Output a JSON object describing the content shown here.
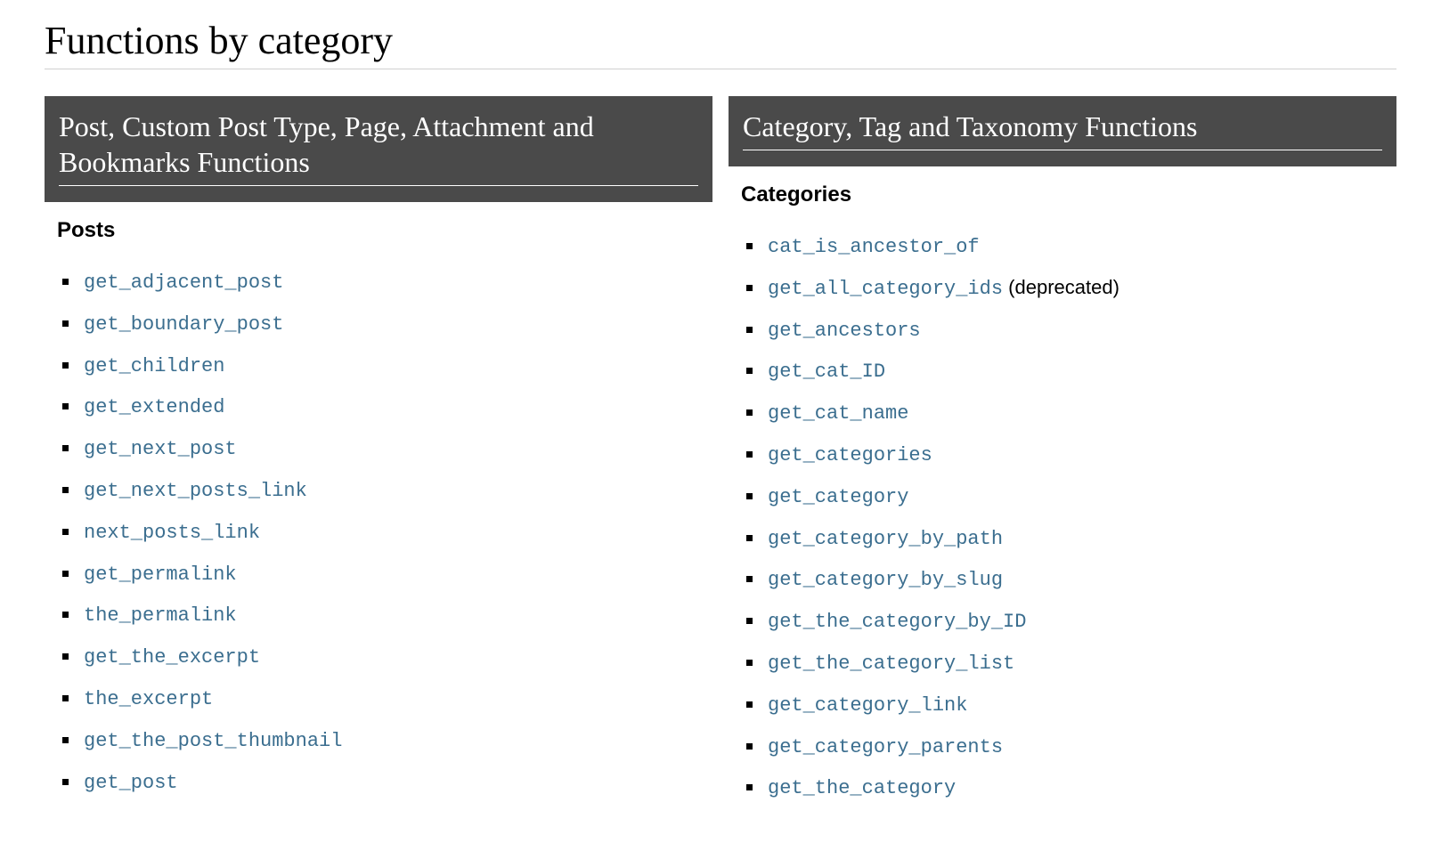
{
  "page_title": "Functions by category",
  "link_color": "#3b6e8f",
  "header_bg": "#4a4a4a",
  "left": {
    "header": "Post, Custom Post Type, Page, Attachment and Bookmarks Functions",
    "subsection": "Posts",
    "items": [
      {
        "name": "get_adjacent_post",
        "suffix": ""
      },
      {
        "name": "get_boundary_post",
        "suffix": ""
      },
      {
        "name": "get_children",
        "suffix": ""
      },
      {
        "name": "get_extended",
        "suffix": ""
      },
      {
        "name": "get_next_post",
        "suffix": ""
      },
      {
        "name": "get_next_posts_link",
        "suffix": ""
      },
      {
        "name": "next_posts_link",
        "suffix": ""
      },
      {
        "name": "get_permalink",
        "suffix": ""
      },
      {
        "name": "the_permalink",
        "suffix": ""
      },
      {
        "name": "get_the_excerpt",
        "suffix": ""
      },
      {
        "name": "the_excerpt",
        "suffix": ""
      },
      {
        "name": "get_the_post_thumbnail",
        "suffix": ""
      },
      {
        "name": "get_post",
        "suffix": ""
      }
    ]
  },
  "right": {
    "header": "Category, Tag and Taxonomy Functions",
    "subsection": "Categories",
    "items": [
      {
        "name": "cat_is_ancestor_of",
        "suffix": ""
      },
      {
        "name": "get_all_category_ids",
        "suffix": " (deprecated)"
      },
      {
        "name": "get_ancestors",
        "suffix": ""
      },
      {
        "name": "get_cat_ID",
        "suffix": ""
      },
      {
        "name": "get_cat_name",
        "suffix": ""
      },
      {
        "name": "get_categories",
        "suffix": ""
      },
      {
        "name": "get_category",
        "suffix": ""
      },
      {
        "name": "get_category_by_path",
        "suffix": ""
      },
      {
        "name": "get_category_by_slug",
        "suffix": ""
      },
      {
        "name": "get_the_category_by_ID",
        "suffix": ""
      },
      {
        "name": "get_the_category_list",
        "suffix": ""
      },
      {
        "name": "get_category_link",
        "suffix": ""
      },
      {
        "name": "get_category_parents",
        "suffix": ""
      },
      {
        "name": "get_the_category",
        "suffix": ""
      }
    ]
  }
}
